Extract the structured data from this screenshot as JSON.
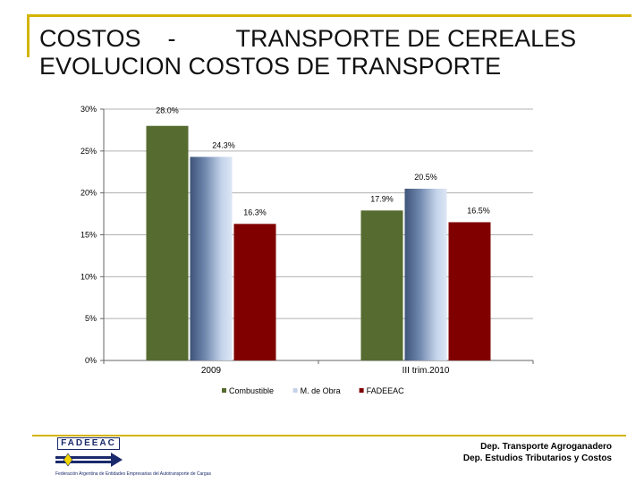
{
  "title": {
    "line1": "COSTOS    -         TRANSPORTE DE CEREALES",
    "line2": "EVOLUCION COSTOS DE TRANSPORTE"
  },
  "chart_data": {
    "type": "bar",
    "categories": [
      "2009",
      "III trim.2010"
    ],
    "series": [
      {
        "name": "Combustible",
        "values": [
          28.0,
          17.9
        ],
        "labels": [
          "28.0%",
          "17.9%"
        ],
        "color": "#556b2f"
      },
      {
        "name": "M. de Obra",
        "values": [
          24.3,
          20.5
        ],
        "labels": [
          "24.3%",
          "20.5%"
        ],
        "color": "#4a6086"
      },
      {
        "name": "FADEEAC",
        "values": [
          16.3,
          16.5
        ],
        "labels": [
          "16.3%",
          "16.5%"
        ],
        "color": "#800000"
      }
    ],
    "ylim": [
      0,
      30
    ],
    "yticks": [
      0,
      5,
      10,
      15,
      20,
      25,
      30
    ],
    "ytick_labels": [
      "0%",
      "5%",
      "10%",
      "15%",
      "20%",
      "25%",
      "30%"
    ],
    "grid": true,
    "legend": "bottom-center"
  },
  "logo": {
    "name": "FADEEAC",
    "subtitle": "Federación Argentina de Entidades Empresarias del Autotransporte de Cargas"
  },
  "footer": {
    "line1": "Dep. Transporte Agroganadero",
    "line2": "Dep.  Estudios Tributarios y Costos"
  },
  "colors": {
    "accent": "#d4b400",
    "grid": "#b0b0b0"
  }
}
